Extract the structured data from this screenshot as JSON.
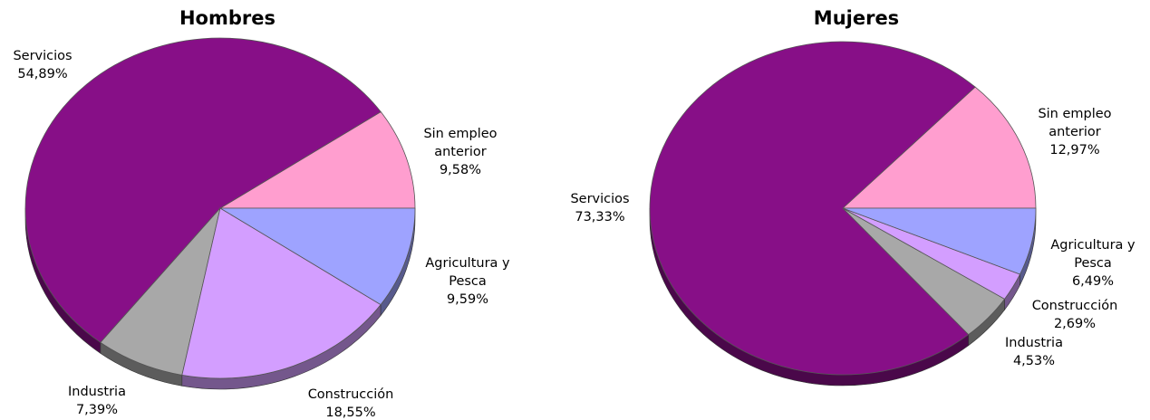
{
  "colors": {
    "Servicios": "#870F87",
    "Sin empleo anterior": "#FF9ECF",
    "Agricultura y Pesca": "#9EA3FF",
    "Construcción": "#D39EFF",
    "Industria": "#A8A8A8"
  },
  "chart_data": [
    {
      "type": "pie",
      "title": "Hombres",
      "slices": [
        {
          "name": "Sin empleo anterior",
          "label_lines": [
            "Sin empleo",
            "anterior"
          ],
          "value": 9.58,
          "value_label": "9,58%"
        },
        {
          "name": "Servicios",
          "label_lines": [
            "Servicios"
          ],
          "value": 54.89,
          "value_label": "54,89%"
        },
        {
          "name": "Industria",
          "label_lines": [
            "Industria"
          ],
          "value": 7.39,
          "value_label": "7,39%"
        },
        {
          "name": "Construcción",
          "label_lines": [
            "Construcción"
          ],
          "value": 18.55,
          "value_label": "18,55%"
        },
        {
          "name": "Agricultura y Pesca",
          "label_lines": [
            "Agricultura y",
            "Pesca"
          ],
          "value": 9.59,
          "value_label": "9,59%"
        }
      ]
    },
    {
      "type": "pie",
      "title": "Mujeres",
      "slices": [
        {
          "name": "Sin empleo anterior",
          "label_lines": [
            "Sin empleo",
            "anterior"
          ],
          "value": 12.97,
          "value_label": "12,97%"
        },
        {
          "name": "Servicios",
          "label_lines": [
            "Servicios"
          ],
          "value": 73.33,
          "value_label": "73,33%"
        },
        {
          "name": "Industria",
          "label_lines": [
            "Industria"
          ],
          "value": 4.53,
          "value_label": "4,53%"
        },
        {
          "name": "Construcción",
          "label_lines": [
            "Construcción"
          ],
          "value": 2.69,
          "value_label": "2,69%"
        },
        {
          "name": "Agricultura y Pesca",
          "label_lines": [
            "Agricultura y",
            "Pesca"
          ],
          "value": 6.49,
          "value_label": "6,49%"
        }
      ]
    }
  ]
}
